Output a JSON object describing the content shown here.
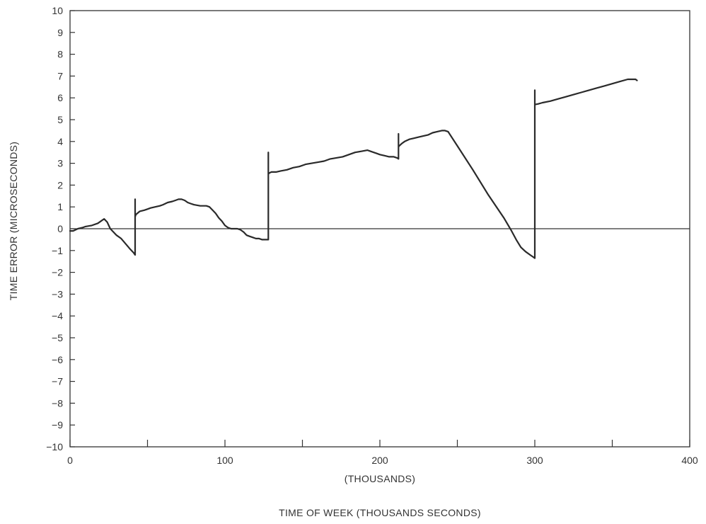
{
  "chart_data": {
    "type": "line",
    "title": "",
    "xlabel": "TIME OF WEEK (THOUSANDS SECONDS)",
    "xlabel_sub": "(THOUSANDS)",
    "ylabel": "TIME ERROR (MICROSECONDS)",
    "xlim": [
      0,
      400
    ],
    "ylim": [
      -10,
      10
    ],
    "x_ticks": [
      0,
      100,
      200,
      300,
      400
    ],
    "x_minor_ticks": [
      50,
      150,
      250,
      350
    ],
    "y_ticks": [
      -10,
      -9,
      -8,
      -7,
      -6,
      -5,
      -4,
      -3,
      -2,
      -1,
      0,
      1,
      2,
      3,
      4,
      5,
      6,
      7,
      8,
      9,
      10
    ],
    "grid": false,
    "legend": "none",
    "reference_line": {
      "y": 0
    },
    "series": [
      {
        "x": [
          0,
          2,
          5,
          8,
          10,
          14,
          18,
          20,
          22,
          24,
          26,
          28,
          30,
          33,
          36,
          39,
          41,
          42,
          42,
          42,
          42.5,
          45,
          48,
          50,
          52,
          55,
          58,
          60,
          63,
          66,
          68,
          70,
          72,
          74,
          76,
          78,
          80,
          84,
          88,
          90,
          92,
          94,
          96,
          98,
          100,
          102,
          104,
          106,
          108,
          110,
          112,
          114,
          116,
          118,
          120,
          122,
          124,
          126,
          128,
          128,
          128,
          128.5,
          130,
          133,
          136,
          140,
          144,
          148,
          152,
          156,
          160,
          164,
          168,
          172,
          176,
          180,
          184,
          188,
          192,
          194,
          196,
          198,
          200,
          203,
          206,
          209,
          211,
          212,
          212,
          212,
          212.5,
          214,
          216,
          219,
          222,
          225,
          228,
          231,
          234,
          237,
          240,
          242,
          244,
          250,
          260,
          270,
          280,
          285,
          288,
          291,
          294,
          297,
          299,
          300,
          300,
          300,
          300.5,
          302,
          305,
          310,
          315,
          320,
          325,
          330,
          335,
          340,
          345,
          350,
          355,
          360,
          363,
          365,
          366
        ],
        "y": [
          -0.1,
          -0.1,
          0.0,
          0.05,
          0.1,
          0.15,
          0.25,
          0.35,
          0.45,
          0.3,
          0.0,
          -0.15,
          -0.3,
          -0.45,
          -0.7,
          -0.95,
          -1.1,
          -1.2,
          1.35,
          0.55,
          0.65,
          0.8,
          0.85,
          0.9,
          0.95,
          1.0,
          1.05,
          1.1,
          1.2,
          1.25,
          1.3,
          1.35,
          1.35,
          1.3,
          1.2,
          1.15,
          1.1,
          1.05,
          1.05,
          1.0,
          0.85,
          0.7,
          0.5,
          0.35,
          0.15,
          0.05,
          0.0,
          0.0,
          0.0,
          -0.05,
          -0.15,
          -0.3,
          -0.35,
          -0.4,
          -0.45,
          -0.45,
          -0.5,
          -0.5,
          -0.5,
          3.5,
          2.5,
          2.55,
          2.6,
          2.6,
          2.65,
          2.7,
          2.8,
          2.85,
          2.95,
          3.0,
          3.05,
          3.1,
          3.2,
          3.25,
          3.3,
          3.4,
          3.5,
          3.55,
          3.6,
          3.55,
          3.5,
          3.45,
          3.4,
          3.35,
          3.3,
          3.3,
          3.25,
          3.2,
          4.35,
          3.75,
          3.8,
          3.9,
          4.0,
          4.1,
          4.15,
          4.2,
          4.25,
          4.3,
          4.4,
          4.45,
          4.5,
          4.5,
          4.45,
          3.8,
          2.7,
          1.55,
          0.5,
          -0.1,
          -0.5,
          -0.85,
          -1.05,
          -1.2,
          -1.3,
          -1.35,
          6.35,
          5.7,
          5.7,
          5.72,
          5.78,
          5.85,
          5.95,
          6.05,
          6.15,
          6.25,
          6.35,
          6.45,
          6.55,
          6.65,
          6.75,
          6.85,
          6.85,
          6.85,
          6.8
        ]
      }
    ]
  }
}
